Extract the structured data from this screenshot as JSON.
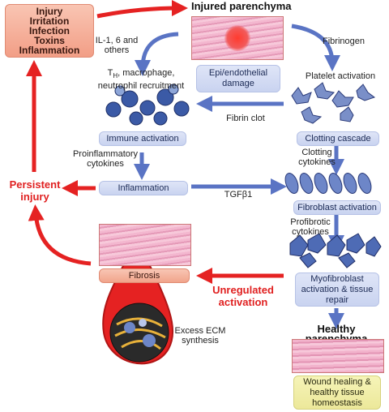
{
  "causes": {
    "lines": [
      "Injury",
      "Irritation",
      "Infection",
      "Toxins",
      "Inflammation"
    ]
  },
  "titles": {
    "injured": "Injured parenchyma",
    "healthy": "Healthy parenchyma"
  },
  "nodes": {
    "epi_damage": "Epi/endothelial damage",
    "immune": "Immune activation",
    "inflammation": "Inflammation",
    "clotting": "Clotting cascade",
    "fibroblast": "Fibroblast activation",
    "myofibroblast": "Myofibroblast activation & tissue repair",
    "fibrosis": "Fibrosis",
    "wound": "Wound healing & healthy tissue homeostasis"
  },
  "labels": {
    "il": "IL-1, 6 and others",
    "th_prefix": "T",
    "th_sub": "H",
    "th_rest": ", macrophage, neutrophil recruitment",
    "fibrinogen": "Fibrinogen",
    "platelet": "Platelet activation",
    "fibrin": "Fibrin clot",
    "proinflam": "Proinflammatory cytokines",
    "tgf": "TGFβ1",
    "clotting_cyt": "Clotting cytokines",
    "profibrotic": "Profibrotic cytokines",
    "ecm": "Excess ECM synthesis"
  },
  "red_labels": {
    "persistent": "Persistent injury",
    "unregulated": "Unregulated activation"
  },
  "colors": {
    "arrow_blue": "#5a74c4",
    "arrow_red": "#e52222",
    "node_fill": "#d3dbf3",
    "causes_fill": "#f6b49e",
    "wound_fill": "#f3f0a8"
  }
}
